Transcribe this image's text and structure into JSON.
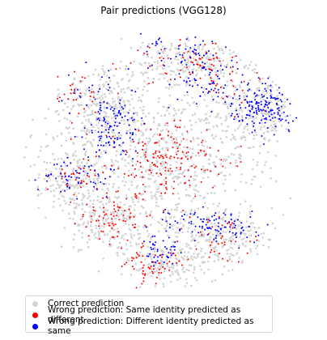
{
  "chart_data": {
    "type": "scatter",
    "title": "Pair predictions (VGG128)",
    "xlabel": "",
    "ylabel": "",
    "axes_visible": false,
    "grid": false,
    "xlim": [
      0,
      100
    ],
    "ylim": [
      0,
      100
    ],
    "legend": {
      "placement": "bottom-left",
      "entries": [
        {
          "label": "Correct prediction",
          "color": "#d3d3d3"
        },
        {
          "label": "Wrong prediction: Same identity predicted as different",
          "color": "#ff0000"
        },
        {
          "label": "Wrong prediction: Different identity predicted as same",
          "color": "#0000ff"
        }
      ]
    },
    "series": [
      {
        "name": "Correct prediction",
        "color": "#d3d3d3",
        "clusters": [
          {
            "cx": 50,
            "cy": 51,
            "sx": 20,
            "sy": 18,
            "n": 900
          },
          {
            "cx": 52,
            "cy": 88,
            "sx": 8,
            "sy": 4,
            "n": 160
          },
          {
            "cx": 72,
            "cy": 80,
            "sx": 8,
            "sy": 5,
            "n": 160
          },
          {
            "cx": 30,
            "cy": 73,
            "sx": 8,
            "sy": 6,
            "n": 160
          },
          {
            "cx": 18,
            "cy": 57,
            "sx": 6,
            "sy": 6,
            "n": 140
          },
          {
            "cx": 28,
            "cy": 30,
            "sx": 9,
            "sy": 7,
            "n": 200
          },
          {
            "cx": 59,
            "cy": 12,
            "sx": 12,
            "sy": 5,
            "n": 200
          },
          {
            "cx": 82,
            "cy": 30,
            "sx": 7,
            "sy": 7,
            "n": 180
          }
        ]
      },
      {
        "name": "Wrong prediction: Same identity predicted as different",
        "color": "#ff0000",
        "clusters": [
          {
            "cx": 51,
            "cy": 49,
            "sx": 11,
            "sy": 7,
            "n": 170
          },
          {
            "cx": 47,
            "cy": 89,
            "sx": 5,
            "sy": 3.5,
            "n": 60
          },
          {
            "cx": 70,
            "cy": 80,
            "sx": 6,
            "sy": 4,
            "n": 40
          },
          {
            "cx": 31,
            "cy": 71,
            "sx": 6,
            "sy": 5,
            "n": 80
          },
          {
            "cx": 20,
            "cy": 58,
            "sx": 5,
            "sy": 4,
            "n": 30
          },
          {
            "cx": 21,
            "cy": 26,
            "sx": 5,
            "sy": 4,
            "n": 30
          },
          {
            "cx": 62,
            "cy": 13,
            "sx": 9,
            "sy": 4,
            "n": 70
          },
          {
            "cx": 72,
            "cy": 23,
            "sx": 6,
            "sy": 4,
            "n": 20
          }
        ]
      },
      {
        "name": "Wrong prediction: Different identity predicted as same",
        "color": "#0000ff",
        "clusters": [
          {
            "cx": 84,
            "cy": 30,
            "sx": 5,
            "sy": 5,
            "n": 160
          },
          {
            "cx": 66,
            "cy": 23,
            "sx": 6,
            "sy": 5,
            "n": 60
          },
          {
            "cx": 33,
            "cy": 38,
            "sx": 5,
            "sy": 6,
            "n": 110
          },
          {
            "cx": 66,
            "cy": 74,
            "sx": 8,
            "sy": 3,
            "n": 100
          },
          {
            "cx": 18,
            "cy": 56,
            "sx": 6,
            "sy": 3.5,
            "n": 60
          },
          {
            "cx": 49,
            "cy": 84,
            "sx": 3.5,
            "sy": 3,
            "n": 45
          },
          {
            "cx": 55,
            "cy": 10,
            "sx": 7,
            "sy": 4,
            "n": 60
          },
          {
            "cx": 27,
            "cy": 24,
            "sx": 5,
            "sy": 4,
            "n": 30
          }
        ]
      }
    ]
  }
}
